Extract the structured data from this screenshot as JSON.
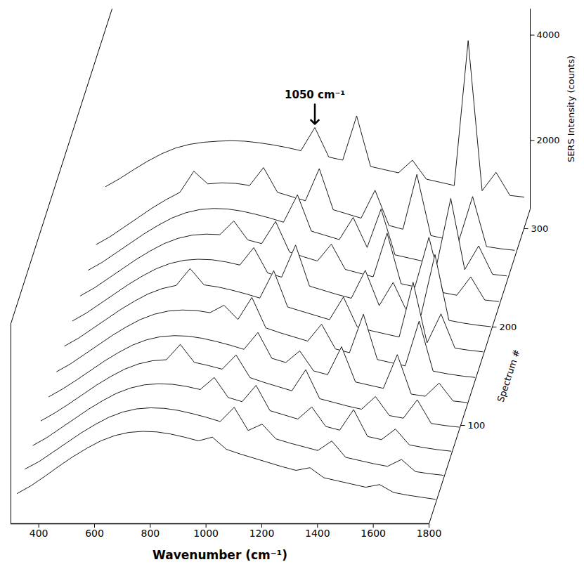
{
  "chart_data": {
    "type": "waterfall",
    "xlabel": "Wavenumber (cm⁻¹)",
    "ylabel": "SERS Intensity (counts)",
    "zlabel": "Spectrum #",
    "color": "#000000",
    "xlim": [
      300,
      1800
    ],
    "xticks": [
      400,
      600,
      800,
      1000,
      1200,
      1400,
      1600,
      1800
    ],
    "ylim": [
      700,
      4500
    ],
    "yticks": [
      2000,
      4000
    ],
    "zlim": [
      0,
      320
    ],
    "zticks": [
      100,
      200,
      300
    ],
    "annotations": [
      {
        "text": "1050 cm⁻¹",
        "x": 1050,
        "spectrum": 300
      }
    ],
    "x": [
      300,
      350,
      400,
      450,
      500,
      550,
      600,
      650,
      700,
      750,
      800,
      850,
      900,
      950,
      1000,
      1050,
      1100,
      1150,
      1200,
      1250,
      1300,
      1350,
      1400,
      1450,
      1500,
      1550,
      1600,
      1650,
      1700,
      1750,
      1800
    ],
    "series": [
      {
        "spectrum": 20,
        "values": [
          900,
          1050,
          1230,
          1420,
          1600,
          1760,
          1900,
          2000,
          2060,
          2080,
          2070,
          2030,
          1970,
          1900,
          1970,
          1740,
          1650,
          1570,
          1490,
          1410,
          1340,
          1390,
          1200,
          1140,
          1080,
          1020,
          1070,
          920,
          870,
          830,
          790
        ]
      },
      {
        "spectrum": 45,
        "values": [
          900,
          1040,
          1220,
          1400,
          1580,
          1740,
          1880,
          1980,
          2040,
          2060,
          2050,
          2010,
          1950,
          1880,
          1800,
          2070,
          1630,
          1750,
          1470,
          1390,
          1320,
          1250,
          1430,
          1120,
          1060,
          1000,
          950,
          1080,
          850,
          810,
          780
        ]
      },
      {
        "spectrum": 70,
        "values": [
          880,
          1030,
          1210,
          1390,
          1570,
          1730,
          1870,
          1970,
          2030,
          2050,
          2040,
          2000,
          1940,
          2170,
          1790,
          1710,
          2020,
          1540,
          1460,
          1380,
          1610,
          1240,
          1170,
          1560,
          1050,
          990,
          1190,
          890,
          840,
          800,
          770
        ]
      },
      {
        "spectrum": 95,
        "values": [
          880,
          1030,
          1200,
          1380,
          1560,
          1720,
          1860,
          1960,
          2020,
          2040,
          2330,
          1990,
          1930,
          1860,
          2130,
          1700,
          1610,
          1530,
          1450,
          1850,
          1300,
          1230,
          1160,
          1100,
          1340,
          980,
          930,
          1280,
          830,
          790,
          760
        ]
      },
      {
        "spectrum": 120,
        "values": [
          870,
          1020,
          1190,
          1370,
          1550,
          1710,
          1850,
          1950,
          2010,
          2030,
          2020,
          1980,
          1920,
          1850,
          1770,
          2090,
          1600,
          1520,
          1740,
          1360,
          1290,
          1820,
          1150,
          1090,
          1030,
          1670,
          920,
          880,
          1130,
          790,
          760
        ]
      },
      {
        "spectrum": 145,
        "values": [
          880,
          1030,
          1210,
          1390,
          1570,
          1730,
          1870,
          1970,
          2030,
          2050,
          2040,
          2000,
          2140,
          1870,
          2290,
          1710,
          1620,
          1540,
          1460,
          1780,
          1310,
          1240,
          1970,
          1110,
          1050,
          990,
          1840,
          890,
          840,
          800,
          770
        ]
      },
      {
        "spectrum": 170,
        "values": [
          900,
          1050,
          1230,
          1410,
          1590,
          1750,
          1890,
          1990,
          2050,
          2370,
          2060,
          2020,
          1960,
          1890,
          1810,
          2330,
          1640,
          1560,
          1480,
          1400,
          1830,
          1260,
          1190,
          1130,
          1070,
          2110,
          960,
          1510,
          860,
          820,
          790
        ]
      },
      {
        "spectrum": 195,
        "values": [
          910,
          1060,
          1240,
          1420,
          1600,
          1760,
          1900,
          2000,
          2060,
          2080,
          2070,
          2030,
          1970,
          2300,
          1820,
          1740,
          2350,
          1570,
          1490,
          1410,
          1340,
          1870,
          1200,
          1640,
          1080,
          1020,
          2170,
          920,
          870,
          830,
          800
        ]
      },
      {
        "spectrum": 220,
        "values": [
          920,
          1070,
          1250,
          1430,
          1610,
          1770,
          1910,
          2010,
          2070,
          2090,
          2080,
          2340,
          1980,
          1910,
          2330,
          1750,
          1660,
          1580,
          1900,
          1420,
          1350,
          1280,
          2110,
          1150,
          1090,
          2030,
          980,
          930,
          1280,
          840,
          810
        ]
      },
      {
        "spectrum": 245,
        "values": [
          940,
          1090,
          1270,
          1450,
          1630,
          1790,
          1930,
          2030,
          2090,
          2110,
          2100,
          2060,
          2000,
          1930,
          1850,
          2370,
          1680,
          1600,
          1520,
          1940,
          1370,
          2100,
          1230,
          1170,
          1110,
          1050,
          2300,
          950,
          1400,
          860,
          830
        ]
      },
      {
        "spectrum": 270,
        "values": [
          960,
          1110,
          1290,
          1470,
          1650,
          1810,
          1950,
          2350,
          2110,
          2130,
          2120,
          2080,
          2420,
          1950,
          1870,
          1790,
          2400,
          1620,
          1540,
          1460,
          1990,
          1320,
          1250,
          2290,
          1130,
          1070,
          1020,
          1870,
          920,
          880,
          850
        ]
      },
      {
        "spectrum": 300,
        "values": [
          1500,
          1650,
          1820,
          1980,
          2120,
          2230,
          2300,
          2340,
          2360,
          2370,
          2360,
          2330,
          2290,
          2240,
          2180,
          2620,
          2060,
          2000,
          2840,
          1880,
          1820,
          1760,
          2000,
          1640,
          1580,
          1520,
          4270,
          1420,
          1770,
          1330,
          1300
        ]
      }
    ]
  }
}
